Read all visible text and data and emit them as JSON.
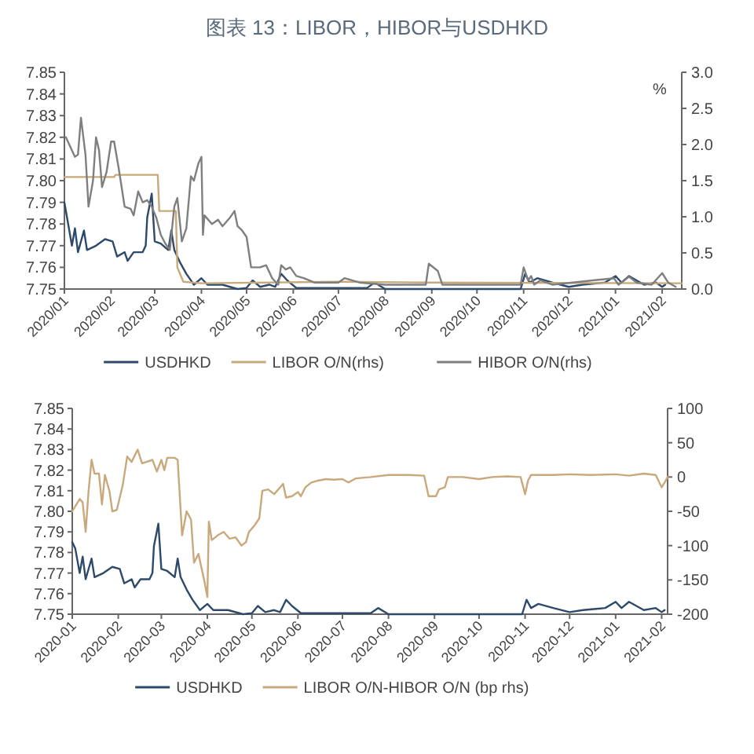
{
  "chart_data": [
    {
      "type": "line",
      "title": "图表 13：LIBOR，HIBOR与USDHKD",
      "y2label": "%",
      "xlim": [
        "2020-01-01",
        "2021-02-14"
      ],
      "xticks": [
        {
          "value": "2020-01",
          "label": "2020/01"
        },
        {
          "value": "2020-02",
          "label": "2020/02"
        },
        {
          "value": "2020-03",
          "label": "2020/03"
        },
        {
          "value": "2020-04",
          "label": "2020/04"
        },
        {
          "value": "2020-05",
          "label": "2020/05"
        },
        {
          "value": "2020-06",
          "label": "2020/06"
        },
        {
          "value": "2020-07",
          "label": "2020/07"
        },
        {
          "value": "2020-08",
          "label": "2020/08"
        },
        {
          "value": "2020-09",
          "label": "2020/09"
        },
        {
          "value": "2020-10",
          "label": "2020/10"
        },
        {
          "value": "2020-11",
          "label": "2020/11"
        },
        {
          "value": "2020-12",
          "label": "2020/12"
        },
        {
          "value": "2021-01",
          "label": "2021/01"
        },
        {
          "value": "2021-02",
          "label": "2021/02"
        }
      ],
      "ylim": [
        7.75,
        7.85
      ],
      "yticks": [
        {
          "value": 7.85,
          "label": "7.85"
        },
        {
          "value": 7.84,
          "label": "7.84"
        },
        {
          "value": 7.83,
          "label": "7.83"
        },
        {
          "value": 7.82,
          "label": "7.82"
        },
        {
          "value": 7.81,
          "label": "7.81"
        },
        {
          "value": 7.8,
          "label": "7.80"
        },
        {
          "value": 7.79,
          "label": "7.79"
        },
        {
          "value": 7.78,
          "label": "7.78"
        },
        {
          "value": 7.77,
          "label": "7.77"
        },
        {
          "value": 7.76,
          "label": "7.76"
        },
        {
          "value": 7.75,
          "label": "7.75"
        }
      ],
      "y2lim": [
        0,
        3
      ],
      "y2ticks": [
        {
          "value": 3,
          "label": "3.0"
        },
        {
          "value": 2.5,
          "label": "2.5"
        },
        {
          "value": 2,
          "label": "2.0"
        },
        {
          "value": 1.5,
          "label": "1.5"
        },
        {
          "value": 1,
          "label": "1.0"
        },
        {
          "value": 0.5,
          "label": "0.5"
        },
        {
          "value": 0,
          "label": "0.0"
        }
      ],
      "grid": false,
      "legend": "bottom",
      "marker": "none",
      "line_style": "solid",
      "series": [
        {
          "name": "USDHKD",
          "color": "#2e4a6b",
          "x": [
            "2020-01-01",
            "2020-01-03",
            "2020-01-06",
            "2020-01-08",
            "2020-01-10",
            "2020-01-14",
            "2020-01-16",
            "2020-01-22",
            "2020-01-28",
            "2020-02-02",
            "2020-02-05",
            "2020-02-10",
            "2020-02-12",
            "2020-02-16",
            "2020-02-22",
            "2020-02-24",
            "2020-02-25",
            "2020-02-28",
            "2020-03-01",
            "2020-03-05",
            "2020-03-10",
            "2020-03-12",
            "2020-03-14",
            "2020-03-18",
            "2020-03-22",
            "2020-03-27",
            "2020-04-01",
            "2020-04-05",
            "2020-04-15",
            "2020-04-25",
            "2020-05-01",
            "2020-05-05",
            "2020-05-10",
            "2020-05-16",
            "2020-05-20",
            "2020-05-24",
            "2020-05-28",
            "2020-06-03",
            "2020-07-20",
            "2020-07-25",
            "2020-08-01",
            "2020-10-30",
            "2020-11-02",
            "2020-11-05",
            "2020-11-10",
            "2020-11-20",
            "2020-12-01",
            "2020-12-10",
            "2020-12-25",
            "2021-01-01",
            "2021-01-05",
            "2021-01-10",
            "2021-01-15",
            "2021-01-20",
            "2021-01-28",
            "2021-02-01",
            "2021-02-03"
          ],
          "values": [
            7.79,
            7.782,
            7.77,
            7.778,
            7.767,
            7.777,
            7.768,
            7.77,
            7.773,
            7.772,
            7.765,
            7.767,
            7.763,
            7.767,
            7.767,
            7.77,
            7.783,
            7.794,
            7.772,
            7.771,
            7.768,
            7.777,
            7.768,
            7.762,
            7.757,
            7.752,
            7.755,
            7.752,
            7.752,
            7.75,
            7.7505,
            7.754,
            7.751,
            7.752,
            7.751,
            7.757,
            7.754,
            7.7505,
            7.7505,
            7.753,
            7.75,
            7.75,
            7.757,
            7.753,
            7.755,
            7.753,
            7.751,
            7.752,
            7.753,
            7.756,
            7.753,
            7.756,
            7.754,
            7.752,
            7.753,
            7.751,
            7.752
          ]
        },
        {
          "name": "LIBOR O/N(rhs)",
          "color": "#c8a97a",
          "axis": "y2",
          "x": [
            "2020-01-01",
            "2020-02-03",
            "2020-02-04",
            "2020-03-03",
            "2020-03-04",
            "2020-03-15",
            "2020-03-16",
            "2020-03-20",
            "2020-04-01",
            "2020-07-01",
            "2020-09-01",
            "2021-02-14"
          ],
          "values": [
            1.55,
            1.55,
            1.58,
            1.58,
            1.08,
            1.08,
            0.3,
            0.1,
            0.08,
            0.1,
            0.09,
            0.08
          ]
        },
        {
          "name": "HIBOR O/N(rhs)",
          "color": "#7f7f7f",
          "axis": "y2",
          "x": [
            "2020-01-02",
            "2020-01-08",
            "2020-01-10",
            "2020-01-12",
            "2020-01-15",
            "2020-01-17",
            "2020-01-20",
            "2020-01-22",
            "2020-01-24",
            "2020-01-26",
            "2020-01-29",
            "2020-02-01",
            "2020-02-03",
            "2020-02-06",
            "2020-02-10",
            "2020-02-14",
            "2020-02-16",
            "2020-02-19",
            "2020-02-22",
            "2020-02-25",
            "2020-02-28",
            "2020-03-02",
            "2020-03-05",
            "2020-03-08",
            "2020-03-11",
            "2020-03-14",
            "2020-03-16",
            "2020-03-19",
            "2020-03-22",
            "2020-03-25",
            "2020-03-27",
            "2020-03-30",
            "2020-04-01",
            "2020-04-02",
            "2020-04-03",
            "2020-04-08",
            "2020-04-12",
            "2020-04-15",
            "2020-04-20",
            "2020-04-23",
            "2020-04-25",
            "2020-04-28",
            "2020-05-01",
            "2020-05-04",
            "2020-05-10",
            "2020-05-14",
            "2020-05-18",
            "2020-05-22",
            "2020-05-24",
            "2020-05-27",
            "2020-05-30",
            "2020-06-03",
            "2020-06-08",
            "2020-06-15",
            "2020-07-01",
            "2020-07-05",
            "2020-07-15",
            "2020-08-01",
            "2020-08-28",
            "2020-08-30",
            "2020-09-05",
            "2020-09-08",
            "2020-10-30",
            "2020-11-01",
            "2020-11-04",
            "2020-11-06",
            "2020-11-08",
            "2020-11-12",
            "2020-11-20",
            "2020-12-31",
            "2021-01-03",
            "2021-01-10",
            "2021-01-15",
            "2021-01-25",
            "2021-02-01",
            "2021-02-05",
            "2021-02-10"
          ],
          "values": [
            2.1,
            1.83,
            1.86,
            2.37,
            1.86,
            1.14,
            1.5,
            2.1,
            1.92,
            1.41,
            1.62,
            2.04,
            2.04,
            1.68,
            1.14,
            1.11,
            1.02,
            1.35,
            1.2,
            1.23,
            1.14,
            0.99,
            0.75,
            0.63,
            0.54,
            1.14,
            1.26,
            0.66,
            0.84,
            1.56,
            1.5,
            1.74,
            1.83,
            0.75,
            1.02,
            0.9,
            0.96,
            0.87,
            0.99,
            1.08,
            0.87,
            0.81,
            0.72,
            0.3,
            0.3,
            0.33,
            0.15,
            0.06,
            0.33,
            0.27,
            0.3,
            0.18,
            0.15,
            0.09,
            0.09,
            0.15,
            0.09,
            0.06,
            0.06,
            0.35,
            0.25,
            0.06,
            0.06,
            0.3,
            0.12,
            0.18,
            0.06,
            0.12,
            0.06,
            0.15,
            0.06,
            0.17,
            0.09,
            0.06,
            0.22,
            0.09,
            0.03
          ]
        }
      ]
    },
    {
      "type": "line",
      "xlim": [
        "2020-01-01",
        "2021-02-05"
      ],
      "xticks": [
        {
          "value": "2020-01",
          "label": "2020-01"
        },
        {
          "value": "2020-02",
          "label": "2020-02"
        },
        {
          "value": "2020-03",
          "label": "2020-03"
        },
        {
          "value": "2020-04",
          "label": "2020-04"
        },
        {
          "value": "2020-05",
          "label": "2020-05"
        },
        {
          "value": "2020-06",
          "label": "2020-06"
        },
        {
          "value": "2020-07",
          "label": "2020-07"
        },
        {
          "value": "2020-08",
          "label": "2020-08"
        },
        {
          "value": "2020-09",
          "label": "2020-09"
        },
        {
          "value": "2020-10",
          "label": "2020-10"
        },
        {
          "value": "2020-11",
          "label": "2020-11"
        },
        {
          "value": "2020-12",
          "label": "2020-12"
        },
        {
          "value": "2021-01",
          "label": "2021-01"
        },
        {
          "value": "2021-02",
          "label": "2021-02"
        }
      ],
      "ylim": [
        7.75,
        7.85
      ],
      "yticks": [
        {
          "value": 7.85,
          "label": "7.85"
        },
        {
          "value": 7.84,
          "label": "7.84"
        },
        {
          "value": 7.83,
          "label": "7.83"
        },
        {
          "value": 7.82,
          "label": "7.82"
        },
        {
          "value": 7.81,
          "label": "7.81"
        },
        {
          "value": 7.8,
          "label": "7.80"
        },
        {
          "value": 7.79,
          "label": "7.79"
        },
        {
          "value": 7.78,
          "label": "7.78"
        },
        {
          "value": 7.77,
          "label": "7.77"
        },
        {
          "value": 7.76,
          "label": "7.76"
        },
        {
          "value": 7.75,
          "label": "7.75"
        }
      ],
      "y2lim": [
        -200,
        100
      ],
      "y2ticks": [
        100,
        50,
        0,
        -50,
        -100,
        -150,
        -200
      ],
      "grid": false,
      "legend": "bottom",
      "marker": "none",
      "line_style": "solid",
      "series": [
        {
          "name": "USDHKD",
          "color": "#2e4a6b",
          "x": [
            "2020-01-01",
            "2020-01-03",
            "2020-01-06",
            "2020-01-08",
            "2020-01-10",
            "2020-01-14",
            "2020-01-16",
            "2020-01-22",
            "2020-01-28",
            "2020-02-02",
            "2020-02-05",
            "2020-02-10",
            "2020-02-12",
            "2020-02-16",
            "2020-02-22",
            "2020-02-24",
            "2020-02-25",
            "2020-02-28",
            "2020-03-01",
            "2020-03-05",
            "2020-03-10",
            "2020-03-12",
            "2020-03-14",
            "2020-03-18",
            "2020-03-22",
            "2020-03-27",
            "2020-04-01",
            "2020-04-05",
            "2020-04-15",
            "2020-04-25",
            "2020-05-01",
            "2020-05-05",
            "2020-05-10",
            "2020-05-16",
            "2020-05-20",
            "2020-05-24",
            "2020-05-28",
            "2020-06-03",
            "2020-07-20",
            "2020-07-25",
            "2020-08-01",
            "2020-10-30",
            "2020-11-02",
            "2020-11-05",
            "2020-11-10",
            "2020-11-20",
            "2020-12-01",
            "2020-12-10",
            "2020-12-25",
            "2021-01-01",
            "2021-01-05",
            "2021-01-10",
            "2021-01-15",
            "2021-01-20",
            "2021-01-28",
            "2021-02-01",
            "2021-02-03"
          ],
          "values": [
            7.785,
            7.782,
            7.77,
            7.778,
            7.767,
            7.777,
            7.768,
            7.77,
            7.773,
            7.772,
            7.765,
            7.767,
            7.763,
            7.767,
            7.767,
            7.77,
            7.783,
            7.794,
            7.772,
            7.771,
            7.768,
            7.777,
            7.768,
            7.762,
            7.757,
            7.752,
            7.755,
            7.752,
            7.752,
            7.75,
            7.7505,
            7.754,
            7.751,
            7.752,
            7.751,
            7.757,
            7.754,
            7.7505,
            7.7505,
            7.753,
            7.75,
            7.75,
            7.757,
            7.753,
            7.755,
            7.753,
            7.751,
            7.752,
            7.753,
            7.756,
            7.753,
            7.756,
            7.754,
            7.752,
            7.753,
            7.751,
            7.752
          ]
        },
        {
          "name": "LIBOR O/N-HIBOR O/N (bp rhs)",
          "color": "#c9a97c",
          "axis": "y2",
          "x": [
            "2020-01-01",
            "2020-01-06",
            "2020-01-08",
            "2020-01-10",
            "2020-01-12",
            "2020-01-14",
            "2020-01-16",
            "2020-01-19",
            "2020-01-21",
            "2020-01-23",
            "2020-01-26",
            "2020-01-28",
            "2020-01-31",
            "2020-02-04",
            "2020-02-07",
            "2020-02-10",
            "2020-02-14",
            "2020-02-17",
            "2020-02-20",
            "2020-02-24",
            "2020-02-27",
            "2020-03-01",
            "2020-03-03",
            "2020-03-05",
            "2020-03-10",
            "2020-03-12",
            "2020-03-15",
            "2020-03-18",
            "2020-03-21",
            "2020-03-23",
            "2020-03-26",
            "2020-03-30",
            "2020-04-01",
            "2020-04-02",
            "2020-04-04",
            "2020-04-08",
            "2020-04-12",
            "2020-04-16",
            "2020-04-20",
            "2020-04-24",
            "2020-04-27",
            "2020-04-29",
            "2020-05-03",
            "2020-05-06",
            "2020-05-08",
            "2020-05-12",
            "2020-05-16",
            "2020-05-20",
            "2020-05-22",
            "2020-05-24",
            "2020-05-28",
            "2020-06-01",
            "2020-06-03",
            "2020-06-06",
            "2020-06-10",
            "2020-06-15",
            "2020-06-20",
            "2020-06-25",
            "2020-07-01",
            "2020-07-05",
            "2020-07-10",
            "2020-07-20",
            "2020-08-01",
            "2020-08-15",
            "2020-08-25",
            "2020-08-28",
            "2020-09-02",
            "2020-09-04",
            "2020-09-08",
            "2020-09-10",
            "2020-09-20",
            "2020-10-01",
            "2020-10-10",
            "2020-10-20",
            "2020-10-29",
            "2020-11-01",
            "2020-11-03",
            "2020-11-05",
            "2020-11-20",
            "2020-12-01",
            "2020-12-15",
            "2021-01-01",
            "2021-01-10",
            "2021-01-20",
            "2021-01-28",
            "2021-02-01",
            "2021-02-03",
            "2021-02-05"
          ],
          "values": [
            -50,
            -32,
            -37,
            -80,
            -20,
            25,
            5,
            5,
            -40,
            3,
            -20,
            -50,
            -48,
            -12,
            30,
            22,
            40,
            20,
            22,
            25,
            8,
            25,
            10,
            28,
            28,
            25,
            -85,
            -50,
            -62,
            -125,
            -112,
            -152,
            -175,
            -65,
            -92,
            -85,
            -80,
            -90,
            -88,
            -100,
            -95,
            -80,
            -70,
            -60,
            -20,
            -18,
            -25,
            -15,
            -10,
            -30,
            -28,
            -22,
            -28,
            -15,
            -8,
            -5,
            -3,
            -4,
            -3,
            -8,
            -2,
            0,
            3,
            3,
            2,
            -28,
            -28,
            -18,
            -15,
            0,
            0,
            -3,
            0,
            1,
            0,
            -25,
            -5,
            3,
            3,
            4,
            3,
            4,
            2,
            5,
            3,
            -15,
            -8,
            0
          ]
        }
      ]
    }
  ]
}
